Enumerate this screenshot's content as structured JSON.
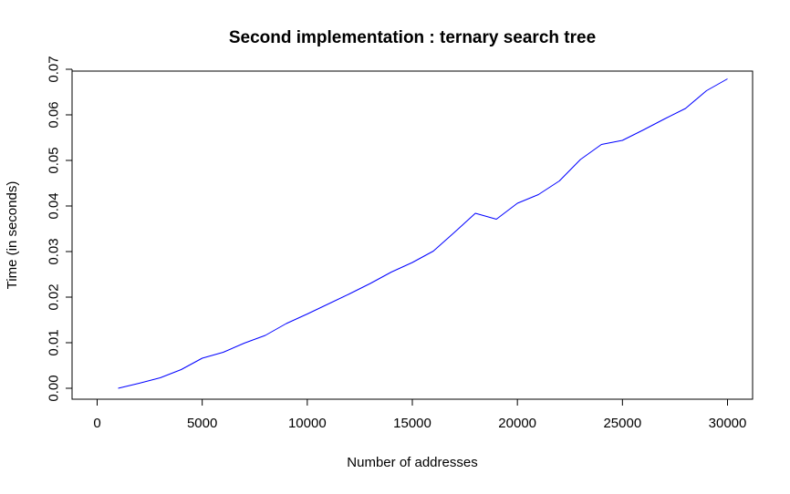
{
  "chart_data": {
    "type": "line",
    "title": "Second implementation : ternary search tree",
    "xlabel": "Number of addresses",
    "ylabel": "Time (in seconds)",
    "xlim": [
      0,
      30000
    ],
    "ylim": [
      0,
      0.07
    ],
    "x_ticks": [
      0,
      5000,
      10000,
      15000,
      20000,
      25000,
      30000
    ],
    "y_ticks": [
      "0.00",
      "0.01",
      "0.02",
      "0.03",
      "0.04",
      "0.05",
      "0.06",
      "0.07"
    ],
    "grid": false,
    "legend": "none",
    "series": [
      {
        "color": "#0000ff",
        "x": [
          1000,
          2000,
          3000,
          4000,
          5000,
          6000,
          7000,
          8000,
          9000,
          10000,
          11000,
          12000,
          13000,
          14000,
          15000,
          16000,
          17000,
          18000,
          19000,
          20000,
          21000,
          22000,
          23000,
          24000,
          25000,
          26000,
          27000,
          28000,
          29000,
          30000
        ],
        "y": [
          0.0,
          0.0011,
          0.0023,
          0.0041,
          0.0066,
          0.0079,
          0.0099,
          0.0116,
          0.0142,
          0.0163,
          0.0185,
          0.0207,
          0.023,
          0.0255,
          0.0276,
          0.0301,
          0.0342,
          0.0384,
          0.0371,
          0.0406,
          0.0425,
          0.0455,
          0.0502,
          0.0535,
          0.0544,
          0.0567,
          0.0591,
          0.0614,
          0.0653,
          0.0679
        ]
      }
    ]
  }
}
